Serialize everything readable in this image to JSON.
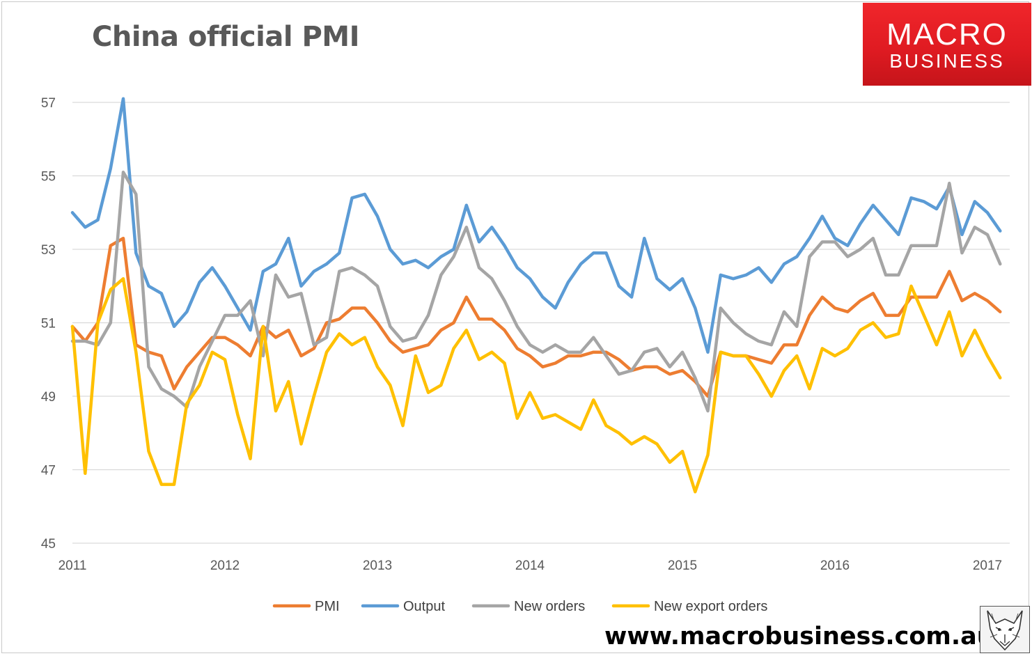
{
  "chart_data": {
    "type": "line",
    "title": "China official PMI",
    "xlabel": "",
    "ylabel": "",
    "ylim": [
      45,
      57
    ],
    "yticks": [
      45,
      47,
      49,
      51,
      53,
      55,
      57
    ],
    "xticks": [
      "2011",
      "2012",
      "2013",
      "2014",
      "2015",
      "2016",
      "2017"
    ],
    "x_start": "2011-01",
    "grid": true,
    "legend": "bottom",
    "series": [
      {
        "name": "PMI",
        "color": "#ED7D31",
        "values": [
          50.9,
          50.5,
          51.0,
          53.1,
          53.3,
          50.4,
          50.2,
          50.1,
          49.2,
          49.8,
          50.2,
          50.6,
          50.6,
          50.4,
          50.1,
          50.9,
          50.6,
          50.8,
          50.1,
          50.3,
          51.0,
          51.1,
          51.4,
          51.4,
          51.0,
          50.5,
          50.2,
          50.3,
          50.4,
          50.8,
          51.0,
          51.7,
          51.1,
          51.1,
          50.8,
          50.3,
          50.1,
          49.8,
          49.9,
          50.1,
          50.1,
          50.2,
          50.2,
          50.0,
          49.7,
          49.8,
          49.8,
          49.6,
          49.7,
          49.4,
          49.0,
          50.2,
          50.1,
          50.1,
          50.0,
          49.9,
          50.4,
          50.4,
          51.2,
          51.7,
          51.4,
          51.3,
          51.6,
          51.8,
          51.2,
          51.2,
          51.7,
          51.7,
          51.7,
          52.4,
          51.6,
          51.8,
          51.6,
          51.3
        ]
      },
      {
        "name": "Output",
        "color": "#5B9BD5",
        "values": [
          54.0,
          53.6,
          53.8,
          55.2,
          57.1,
          52.9,
          52.0,
          51.8,
          50.9,
          51.3,
          52.1,
          52.5,
          52.0,
          51.4,
          50.8,
          52.4,
          52.6,
          53.3,
          52.0,
          52.4,
          52.6,
          52.9,
          54.4,
          54.5,
          53.9,
          53.0,
          52.6,
          52.7,
          52.5,
          52.8,
          53.0,
          54.2,
          53.2,
          53.6,
          53.1,
          52.5,
          52.2,
          51.7,
          51.4,
          52.1,
          52.6,
          52.9,
          52.9,
          52.0,
          51.7,
          53.3,
          52.2,
          51.9,
          52.2,
          51.4,
          50.2,
          52.3,
          52.2,
          52.3,
          52.5,
          52.1,
          52.6,
          52.8,
          53.3,
          53.9,
          53.3,
          53.1,
          53.7,
          54.2,
          53.8,
          53.4,
          54.4,
          54.3,
          54.1,
          54.7,
          53.4,
          54.3,
          54.0,
          53.5
        ]
      },
      {
        "name": "New orders",
        "color": "#A5A5A5",
        "values": [
          50.5,
          50.5,
          50.4,
          51.0,
          55.1,
          54.5,
          49.8,
          49.2,
          49.0,
          48.7,
          49.8,
          50.5,
          51.2,
          51.2,
          51.6,
          50.1,
          52.3,
          51.7,
          51.8,
          50.4,
          50.6,
          52.4,
          52.5,
          52.3,
          52.0,
          50.9,
          50.5,
          50.6,
          51.2,
          52.3,
          52.8,
          53.6,
          52.5,
          52.2,
          51.6,
          50.9,
          50.4,
          50.2,
          50.4,
          50.2,
          50.2,
          50.6,
          50.1,
          49.6,
          49.7,
          50.2,
          50.3,
          49.8,
          50.2,
          49.5,
          48.6,
          51.4,
          51.0,
          50.7,
          50.5,
          50.4,
          51.3,
          50.9,
          52.8,
          53.2,
          53.2,
          52.8,
          53.0,
          53.3,
          52.3,
          52.3,
          53.1,
          53.1,
          53.1,
          54.8,
          52.9,
          53.6,
          53.4,
          52.6
        ]
      },
      {
        "name": "New export orders",
        "color": "#FFC000",
        "values": [
          50.9,
          46.9,
          51.0,
          51.9,
          52.2,
          50.2,
          47.5,
          46.6,
          46.6,
          48.8,
          49.3,
          50.2,
          50.0,
          48.5,
          47.3,
          50.9,
          48.6,
          49.4,
          47.7,
          49.0,
          50.2,
          50.7,
          50.4,
          50.6,
          49.8,
          49.3,
          48.2,
          50.1,
          49.1,
          49.3,
          50.3,
          50.8,
          50.0,
          50.2,
          49.9,
          48.4,
          49.1,
          48.4,
          48.5,
          48.3,
          48.1,
          48.9,
          48.2,
          48.0,
          47.7,
          47.9,
          47.7,
          47.2,
          47.5,
          46.4,
          47.4,
          50.2,
          50.1,
          50.1,
          49.6,
          49.0,
          49.7,
          50.1,
          49.2,
          50.3,
          50.1,
          50.3,
          50.8,
          51.0,
          50.6,
          50.7,
          52.0,
          51.2,
          50.4,
          51.3,
          50.1,
          50.8,
          50.1,
          49.5
        ]
      }
    ]
  },
  "branding": {
    "logo_line1": "MACRO",
    "logo_line2": "BUSINESS",
    "website": "www.macrobusiness.com.au"
  }
}
